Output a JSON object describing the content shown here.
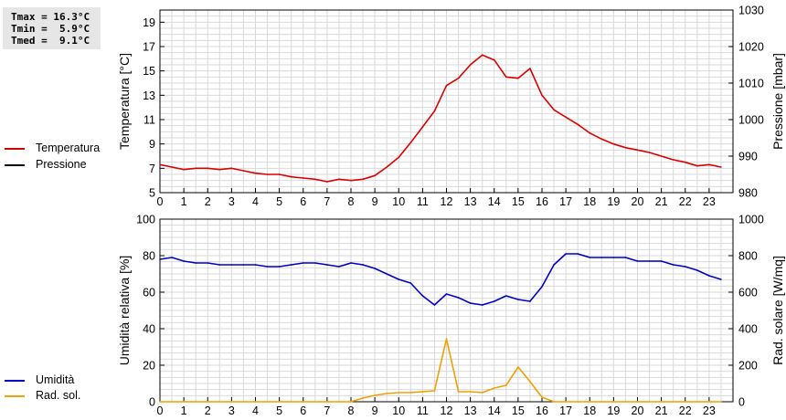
{
  "stats": {
    "tmax": "Tmax = 16.3°C",
    "tmin": "Tmin =  5.9°C",
    "tmed": "Tmed =  9.1°C"
  },
  "chart_data": [
    {
      "type": "line",
      "ylabel": "Temperatura [°C]",
      "y2label": "Pressione [mbar]",
      "ylim": [
        5,
        20
      ],
      "yticks": [
        5,
        7,
        9,
        11,
        13,
        15,
        17,
        19
      ],
      "y2lim": [
        980,
        1030
      ],
      "y2ticks": [
        980,
        990,
        1000,
        1010,
        1020,
        1030
      ],
      "xlim": [
        0,
        24
      ],
      "xticks": [
        "0",
        "1",
        "2",
        "3",
        "4",
        "5",
        "6",
        "7",
        "8",
        "9",
        "10",
        "11",
        "12",
        "13",
        "14",
        "15",
        "16",
        "17",
        "18",
        "19",
        "20",
        "21",
        "22",
        "23"
      ],
      "grid": true,
      "legend_position": "left",
      "series": [
        {
          "name": "Temperatura",
          "color": "#dd0000",
          "axis": "left",
          "x": [
            0,
            0.5,
            1,
            1.5,
            2,
            2.5,
            3,
            3.5,
            4,
            4.5,
            5,
            5.5,
            6,
            6.5,
            7,
            7.5,
            8,
            8.5,
            9,
            9.5,
            10,
            10.5,
            11,
            11.5,
            12,
            12.5,
            13,
            13.5,
            14,
            14.5,
            15,
            15.5,
            16,
            16.5,
            17,
            17.5,
            18,
            18.5,
            19,
            19.5,
            20,
            20.5,
            21,
            21.5,
            22,
            22.5,
            23,
            23.5
          ],
          "y": [
            7.3,
            7.1,
            6.9,
            7.0,
            7.0,
            6.9,
            7.0,
            6.8,
            6.6,
            6.5,
            6.5,
            6.3,
            6.2,
            6.1,
            5.9,
            6.1,
            6.0,
            6.1,
            6.4,
            7.1,
            7.9,
            9.1,
            10.4,
            11.7,
            13.8,
            14.4,
            15.5,
            16.3,
            15.9,
            14.5,
            14.4,
            15.2,
            13.0,
            11.8,
            11.2,
            10.6,
            9.9,
            9.4,
            9.0,
            8.7,
            8.5,
            8.3,
            8.0,
            7.7,
            7.5,
            7.2,
            7.3,
            7.1
          ]
        },
        {
          "name": "Pressione",
          "color": "#000000",
          "axis": "right",
          "x": [],
          "y": []
        }
      ]
    },
    {
      "type": "line",
      "ylabel": "Umidità relativa [%]",
      "y2label": "Rad. solare [W/mq]",
      "ylim": [
        0,
        100
      ],
      "yticks": [
        0,
        20,
        40,
        60,
        80,
        100
      ],
      "y2lim": [
        0,
        1000
      ],
      "y2ticks": [
        0,
        200,
        400,
        600,
        800,
        1000
      ],
      "xlim": [
        0,
        24
      ],
      "xticks": [
        "0",
        "1",
        "2",
        "3",
        "4",
        "5",
        "6",
        "7",
        "8",
        "9",
        "10",
        "11",
        "12",
        "13",
        "14",
        "15",
        "16",
        "17",
        "18",
        "19",
        "20",
        "21",
        "22",
        "23"
      ],
      "grid": true,
      "legend_position": "left",
      "series": [
        {
          "name": "Umidità",
          "color": "#0000c8",
          "axis": "left",
          "x": [
            0,
            0.5,
            1,
            1.5,
            2,
            2.5,
            3,
            3.5,
            4,
            4.5,
            5,
            5.5,
            6,
            6.5,
            7,
            7.5,
            8,
            8.5,
            9,
            9.5,
            10,
            10.5,
            11,
            11.5,
            12,
            12.5,
            13,
            13.5,
            14,
            14.5,
            15,
            15.5,
            16,
            16.5,
            17,
            17.5,
            18,
            18.5,
            19,
            19.5,
            20,
            20.5,
            21,
            21.5,
            22,
            22.5,
            23,
            23.5
          ],
          "y": [
            78,
            79,
            77,
            76,
            76,
            75,
            75,
            75,
            75,
            74,
            74,
            75,
            76,
            76,
            75,
            74,
            76,
            75,
            73,
            70,
            67,
            65,
            58,
            53,
            59,
            57,
            54,
            53,
            55,
            58,
            56,
            55,
            63,
            75,
            81,
            81,
            79,
            79,
            79,
            79,
            77,
            77,
            77,
            75,
            74,
            72,
            69,
            67
          ]
        },
        {
          "name": "Rad. sol.",
          "color": "#f0a000",
          "axis": "right",
          "x": [
            0,
            0.5,
            1,
            1.5,
            2,
            2.5,
            3,
            3.5,
            4,
            4.5,
            5,
            5.5,
            6,
            6.5,
            7,
            7.5,
            8,
            8.5,
            9,
            9.5,
            10,
            10.5,
            11,
            11.5,
            12,
            12.5,
            13,
            13.5,
            14,
            14.5,
            15,
            15.5,
            16,
            16.5,
            17,
            17.5,
            18,
            18.5,
            19,
            19.5,
            20,
            20.5,
            21,
            21.5,
            22,
            22.5,
            23,
            23.5
          ],
          "y": [
            0,
            0,
            0,
            0,
            0,
            0,
            0,
            0,
            0,
            0,
            0,
            0,
            0,
            0,
            0,
            0,
            0,
            20,
            35,
            45,
            50,
            50,
            55,
            60,
            345,
            55,
            55,
            50,
            75,
            90,
            190,
            110,
            25,
            0,
            0,
            0,
            0,
            0,
            0,
            0,
            0,
            0,
            0,
            0,
            0,
            0,
            0,
            0
          ]
        }
      ]
    }
  ]
}
